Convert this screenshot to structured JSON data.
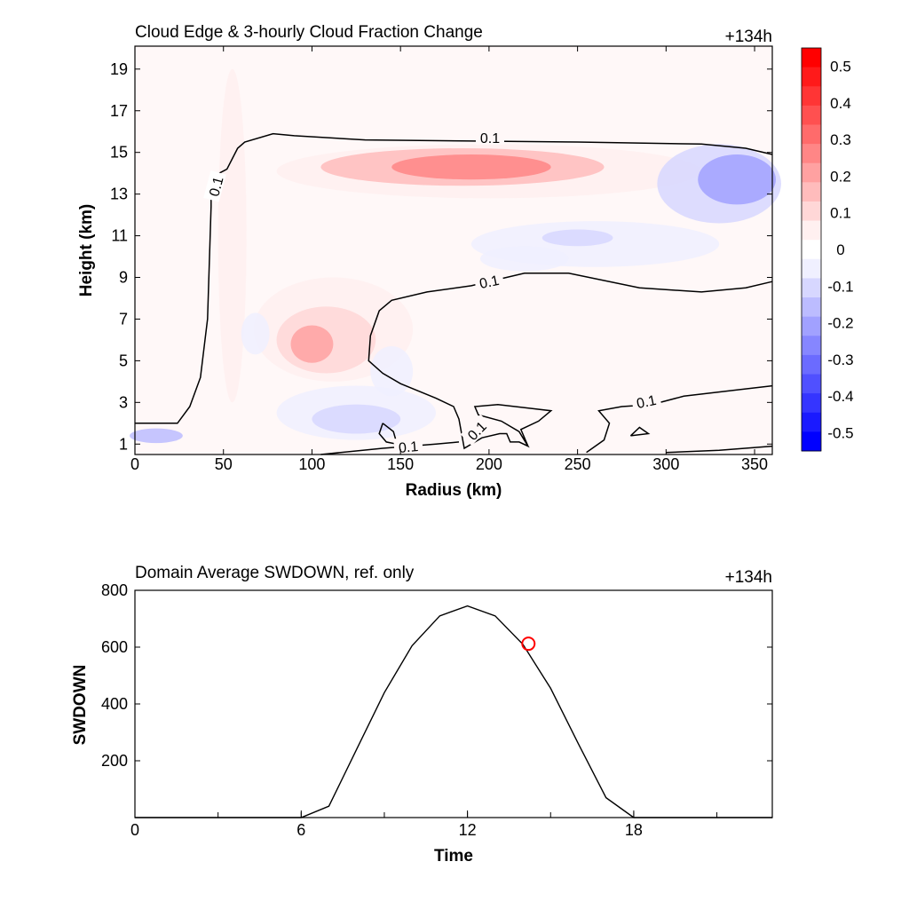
{
  "chart_data": [
    {
      "type": "heatmap",
      "title": "Cloud Edge & 3-hourly Cloud Fraction Change",
      "time_label": "+134h",
      "xlabel": "Radius (km)",
      "ylabel": "Height (km)",
      "xlim": [
        0,
        360
      ],
      "ylim": [
        0.5,
        20.1
      ],
      "xticks": [
        0,
        50,
        100,
        150,
        200,
        250,
        300,
        350
      ],
      "yticks": [
        1,
        3,
        5,
        7,
        9,
        11,
        13,
        15,
        17,
        19
      ],
      "colorbar": {
        "levels": [
          -0.55,
          -0.5,
          -0.45,
          -0.4,
          -0.35,
          -0.3,
          -0.25,
          -0.2,
          -0.15,
          -0.1,
          -0.05,
          0.05,
          0.1,
          0.15,
          0.2,
          0.25,
          0.3,
          0.35,
          0.4,
          0.45,
          0.5,
          0.55
        ],
        "colors": [
          "#0000ff",
          "#1a1aff",
          "#3535ff",
          "#5050ff",
          "#6b6bff",
          "#8686ff",
          "#a1a1ff",
          "#bcbcff",
          "#d7d7ff",
          "#f0f0ff",
          "#ffffff",
          "#fff0f0",
          "#ffd7d7",
          "#ffbcbc",
          "#ffa1a1",
          "#ff8686",
          "#ff6b6b",
          "#ff5050",
          "#ff3535",
          "#ff1a1a",
          "#ff0000"
        ],
        "tick_labels": [
          "0.5",
          "0.4",
          "0.3",
          "0.2",
          "0.1",
          "0",
          "-0.1",
          "-0.2",
          "-0.3",
          "-0.4",
          "-0.5"
        ],
        "tick_values": [
          0.5,
          0.4,
          0.3,
          0.2,
          0.1,
          0,
          -0.1,
          -0.2,
          -0.3,
          -0.4,
          -0.5
        ]
      },
      "anomalies": [
        {
          "value": 0.28,
          "x": 190,
          "y": 14.3,
          "rx": 45,
          "ry": 0.6
        },
        {
          "value": 0.18,
          "x": 185,
          "y": 14.3,
          "rx": 80,
          "ry": 0.9
        },
        {
          "value": 0.08,
          "x": 200,
          "y": 14.1,
          "rx": 120,
          "ry": 1.3
        },
        {
          "value": 0.22,
          "x": 100,
          "y": 5.8,
          "rx": 12,
          "ry": 0.9
        },
        {
          "value": 0.1,
          "x": 108,
          "y": 6.0,
          "rx": 28,
          "ry": 1.6
        },
        {
          "value": 0.05,
          "x": 112,
          "y": 6.5,
          "rx": 45,
          "ry": 2.5
        },
        {
          "value": 0.06,
          "x": 55,
          "y": 11,
          "rx": 8,
          "ry": 8
        },
        {
          "value": -0.22,
          "x": 340,
          "y": 13.7,
          "rx": 22,
          "ry": 1.2
        },
        {
          "value": -0.12,
          "x": 330,
          "y": 13.5,
          "rx": 35,
          "ry": 1.9
        },
        {
          "value": -0.15,
          "x": 250,
          "y": 10.9,
          "rx": 20,
          "ry": 0.4
        },
        {
          "value": -0.1,
          "x": 220,
          "y": 9.9,
          "rx": 25,
          "ry": 0.6
        },
        {
          "value": -0.06,
          "x": 260,
          "y": 10.6,
          "rx": 70,
          "ry": 1.1
        },
        {
          "value": -0.15,
          "x": 125,
          "y": 2.2,
          "rx": 25,
          "ry": 0.7
        },
        {
          "value": -0.08,
          "x": 125,
          "y": 2.5,
          "rx": 45,
          "ry": 1.3
        },
        {
          "value": -0.1,
          "x": 145,
          "y": 4.5,
          "rx": 12,
          "ry": 1.2
        },
        {
          "value": -0.18,
          "x": 12,
          "y": 1.4,
          "rx": 15,
          "ry": 0.35
        },
        {
          "value": -0.06,
          "x": 68,
          "y": 6.3,
          "rx": 8,
          "ry": 1.0
        }
      ],
      "contour_level_label": "0.1",
      "contour_lines": [
        [
          [
            0,
            2.0
          ],
          [
            24,
            2.0
          ],
          [
            31,
            2.8
          ],
          [
            37,
            4.2
          ],
          [
            41,
            7.0
          ],
          [
            43,
            12.4
          ],
          [
            43,
            13.8
          ],
          [
            52,
            14.2
          ],
          [
            58,
            15.2
          ],
          [
            62,
            15.5
          ],
          [
            78,
            15.9
          ],
          [
            90,
            15.8
          ],
          [
            130,
            15.6
          ],
          [
            250,
            15.5
          ],
          [
            320,
            15.4
          ],
          [
            345,
            15.2
          ],
          [
            360,
            14.9
          ]
        ],
        [
          [
            360,
            8.8
          ],
          [
            345,
            8.5
          ],
          [
            320,
            8.3
          ],
          [
            285,
            8.5
          ],
          [
            245,
            9.2
          ],
          [
            220,
            9.2
          ],
          [
            190,
            8.6
          ],
          [
            165,
            8.3
          ],
          [
            145,
            7.9
          ],
          [
            138,
            7.4
          ],
          [
            133,
            6.2
          ],
          [
            132,
            5.0
          ],
          [
            140,
            4.4
          ],
          [
            150,
            3.9
          ],
          [
            170,
            3.2
          ],
          [
            180,
            2.8
          ],
          [
            183,
            2.2
          ],
          [
            186,
            0.8
          ],
          [
            196,
            1.3
          ],
          [
            206,
            1.5
          ],
          [
            210,
            1.5
          ],
          [
            212,
            1.1
          ],
          [
            217,
            1.1
          ],
          [
            222,
            0.9
          ],
          [
            217,
            1.6
          ],
          [
            207,
            2.1
          ],
          [
            194,
            2.4
          ],
          [
            192,
            2.8
          ],
          [
            205,
            2.9
          ],
          [
            225,
            2.7
          ],
          [
            235,
            2.6
          ],
          [
            228,
            2.1
          ],
          [
            218,
            1.7
          ],
          [
            222,
            0.9
          ]
        ],
        [
          [
            140,
            2.0
          ],
          [
            138,
            1.5
          ],
          [
            142,
            1.1
          ],
          [
            148,
            1.0
          ],
          [
            146,
            1.6
          ],
          [
            140,
            2.0
          ]
        ],
        [
          [
            105,
            0.5
          ],
          [
            140,
            0.8
          ],
          [
            170,
            1.0
          ],
          [
            183,
            1.1
          ]
        ],
        [
          [
            255,
            0.6
          ],
          [
            265,
            1.2
          ],
          [
            268,
            2.0
          ],
          [
            262,
            2.6
          ],
          [
            275,
            2.8
          ],
          [
            292,
            2.9
          ],
          [
            310,
            3.3
          ],
          [
            340,
            3.6
          ],
          [
            360,
            3.8
          ]
        ],
        [
          [
            280,
            1.4
          ],
          [
            285,
            1.8
          ],
          [
            290,
            1.5
          ],
          [
            280,
            1.4
          ]
        ],
        [
          [
            300,
            0.6
          ],
          [
            330,
            0.7
          ],
          [
            360,
            0.9
          ]
        ]
      ]
    },
    {
      "type": "line",
      "title": "Domain Average SWDOWN, ref. only",
      "time_label": "+134h",
      "xlabel": "Time",
      "ylabel": "SWDOWN",
      "xlim": [
        0,
        23
      ],
      "ylim": [
        0,
        800
      ],
      "xticks": [
        0,
        6,
        12,
        18
      ],
      "yticks": [
        200,
        400,
        600,
        800
      ],
      "x": [
        0,
        1,
        2,
        3,
        4,
        5,
        6,
        7,
        8,
        9,
        10,
        11,
        12,
        13,
        14,
        15,
        16,
        17,
        18,
        19,
        20,
        21,
        22,
        23
      ],
      "values": [
        0,
        0,
        0,
        0,
        0,
        0,
        0,
        40,
        240,
        440,
        605,
        710,
        745,
        710,
        610,
        455,
        260,
        70,
        0,
        0,
        0,
        0,
        0,
        0
      ],
      "marker": {
        "x": 14.2,
        "y": 612,
        "color": "#ff0000"
      }
    }
  ]
}
